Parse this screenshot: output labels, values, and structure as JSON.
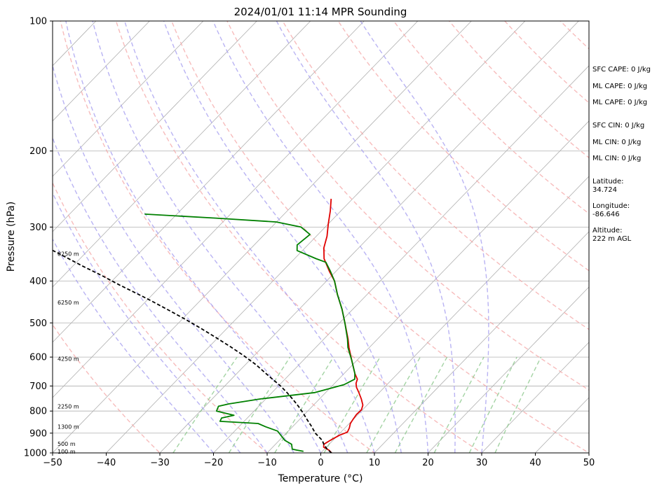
{
  "chart_data": {
    "type": "line",
    "title": "2024/01/01 11:14 MPR Sounding",
    "xlabel": "Temperature (°C)",
    "ylabel": "Pressure (hPa)",
    "xlim": [
      -50,
      50
    ],
    "ylim": [
      1000,
      100
    ],
    "y_scale": "log",
    "x_ticks": [
      -50,
      -40,
      -30,
      -20,
      -10,
      0,
      10,
      20,
      30,
      40,
      50
    ],
    "x_tick_labels": [
      "−50",
      "−40",
      "−30",
      "−20",
      "−10",
      "0",
      "10",
      "20",
      "30",
      "40",
      "50"
    ],
    "y_ticks": [
      1000,
      900,
      800,
      700,
      600,
      500,
      400,
      300,
      200,
      100
    ],
    "y_tick_labels": [
      "1000",
      "900",
      "800",
      "700",
      "600",
      "500",
      "400",
      "300",
      "200",
      "100"
    ],
    "grid": true,
    "skew": "skew-T log-P",
    "series": [
      {
        "color": "#e00000",
        "points": [
          [
            2.0,
            1000
          ],
          [
            1.0,
            985
          ],
          [
            -0.5,
            970
          ],
          [
            -1.0,
            955
          ],
          [
            -0.5,
            935
          ],
          [
            0.3,
            910
          ],
          [
            1.2,
            895
          ],
          [
            0.8,
            875
          ],
          [
            0.2,
            855
          ],
          [
            0.0,
            840
          ],
          [
            -0.3,
            815
          ],
          [
            -0.2,
            795
          ],
          [
            -0.8,
            775
          ],
          [
            -2.2,
            750
          ],
          [
            -3.8,
            725
          ],
          [
            -5.2,
            705
          ],
          [
            -6.0,
            690
          ],
          [
            -6.5,
            675
          ],
          [
            -8.0,
            655
          ],
          [
            -11.0,
            610
          ],
          [
            -13.8,
            570
          ],
          [
            -15.5,
            545
          ],
          [
            -19.0,
            500
          ],
          [
            -22.0,
            465
          ],
          [
            -25.5,
            430
          ],
          [
            -28.5,
            400
          ],
          [
            -31.2,
            380
          ],
          [
            -34.5,
            355
          ],
          [
            -36.5,
            335
          ],
          [
            -38.0,
            315
          ],
          [
            -40.0,
            295
          ],
          [
            -42.0,
            275
          ],
          [
            -44.0,
            258
          ]
        ]
      },
      {
        "color": "#008000",
        "points": [
          [
            -3.5,
            992
          ],
          [
            -5.0,
            985
          ],
          [
            -6.0,
            980
          ],
          [
            -7.0,
            955
          ],
          [
            -9.0,
            935
          ],
          [
            -12.0,
            890
          ],
          [
            -15.0,
            870
          ],
          [
            -17.0,
            855
          ],
          [
            -24.5,
            845
          ],
          [
            -24.8,
            830
          ],
          [
            -23.0,
            818
          ],
          [
            -27.0,
            800
          ],
          [
            -27.5,
            780
          ],
          [
            -26.0,
            770
          ],
          [
            -21.0,
            750
          ],
          [
            -12.0,
            725
          ],
          [
            -8.0,
            695
          ],
          [
            -7.0,
            675
          ],
          [
            -8.0,
            655
          ],
          [
            -11.0,
            610
          ],
          [
            -14.0,
            570
          ],
          [
            -15.6,
            545
          ],
          [
            -19.0,
            500
          ],
          [
            -22.0,
            465
          ],
          [
            -25.5,
            430
          ],
          [
            -28.5,
            400
          ],
          [
            -31.0,
            380
          ],
          [
            -33.5,
            362
          ],
          [
            -36.0,
            355
          ],
          [
            -41.0,
            340
          ],
          [
            -42.0,
            330
          ],
          [
            -41.5,
            312
          ],
          [
            -44.5,
            300
          ],
          [
            -50.0,
            292
          ],
          [
            -62.0,
            286
          ],
          [
            -76.0,
            280
          ]
        ]
      },
      {
        "color": "#000000",
        "style": "dashed",
        "points": [
          [
            2.0,
            1000
          ],
          [
            0.5,
            980
          ],
          [
            -1.0,
            955
          ],
          [
            -2.0,
            935
          ],
          [
            -4.6,
            900
          ],
          [
            -6.4,
            870
          ],
          [
            -8.4,
            840
          ],
          [
            -10.4,
            810
          ],
          [
            -12.6,
            780
          ],
          [
            -14.6,
            755
          ],
          [
            -17.2,
            725
          ],
          [
            -19.6,
            700
          ],
          [
            -24.0,
            660
          ],
          [
            -28.0,
            625
          ],
          [
            -32.0,
            595
          ],
          [
            -36.0,
            568
          ],
          [
            -40.5,
            540
          ],
          [
            -45.0,
            514
          ],
          [
            -49.5,
            490
          ],
          [
            -54.0,
            468
          ],
          [
            -59.0,
            445
          ],
          [
            -63.0,
            428
          ],
          [
            -68.0,
            408
          ],
          [
            -73.0,
            388
          ],
          [
            -78.0,
            370
          ],
          [
            -83.0,
            352
          ],
          [
            -88.0,
            335
          ],
          [
            -93.0,
            320
          ],
          [
            -97.0,
            307
          ],
          [
            -101.0,
            296
          ],
          [
            -104.0,
            288
          ]
        ]
      }
    ],
    "height_labels": [
      {
        "text": "100 m",
        "p": 992
      },
      {
        "text": "500 m",
        "p": 952
      },
      {
        "text": "1300 m",
        "p": 870
      },
      {
        "text": "2250 m",
        "p": 780
      },
      {
        "text": "4250 m",
        "p": 605
      },
      {
        "text": "6250 m",
        "p": 448
      },
      {
        "text": "8250 m",
        "p": 346
      }
    ],
    "side_panel": [
      "SFC CAPE: 0 J/kg",
      "ML CAPE: 0 J/kg",
      "ML CAPE: 0 J/kg",
      "SFC CIN: 0 J/kg",
      "ML CIN: 0 J/kg",
      "ML CIN: 0 J/kg",
      "Latitude:",
      "34.724",
      "Longitude:",
      "-86.646",
      "Altitude:",
      "222 m AGL"
    ],
    "dry_adiabats_theta_c": [
      -30,
      -10,
      10,
      30,
      50,
      70,
      90,
      110,
      130,
      150,
      170,
      190
    ],
    "moist_adiabats_c": [
      -20,
      -15,
      -10,
      -5,
      0,
      5,
      10,
      15,
      20,
      25,
      30
    ],
    "mixing_ratios_gkg": [
      0.4,
      1,
      2,
      4,
      7,
      10,
      16,
      24,
      32
    ],
    "colors": {
      "isotherm": "#b0b0b0",
      "isobar": "#b0b0b0",
      "dry_adiabat": "#f4a6a6",
      "moist_adiabat": "#a8a0f0",
      "mixing_ratio": "#8cc88c"
    }
  }
}
